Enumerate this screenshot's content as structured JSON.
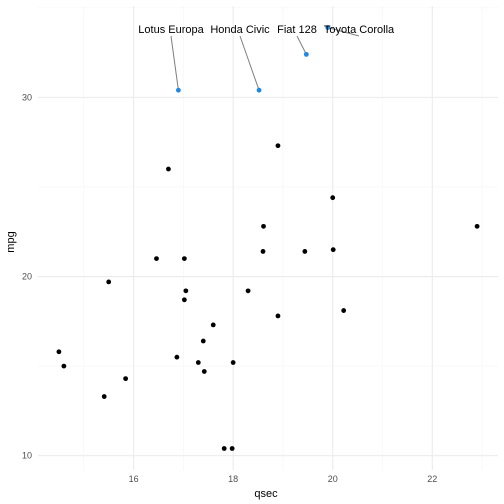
{
  "chart_data": {
    "type": "scatter",
    "title": "",
    "xlabel": "qsec",
    "ylabel": "mpg",
    "xlim": [
      14.08,
      23.32
    ],
    "ylim": [
      9.2,
      35.1
    ],
    "xticks": [
      16,
      18,
      20,
      22
    ],
    "yticks": [
      10,
      20,
      30
    ],
    "grid": true,
    "legend": "none",
    "colors": {
      "point": "#000000",
      "highlight": "#1e88e5",
      "leader": "#7f7f7f",
      "grid_major": "#ebebeb",
      "grid_minor": "#f5f5f5"
    },
    "points": [
      {
        "x": 16.46,
        "y": 21.0
      },
      {
        "x": 17.02,
        "y": 21.0
      },
      {
        "x": 18.61,
        "y": 22.8
      },
      {
        "x": 19.44,
        "y": 21.4
      },
      {
        "x": 17.02,
        "y": 18.7
      },
      {
        "x": 20.22,
        "y": 18.1
      },
      {
        "x": 15.84,
        "y": 14.3
      },
      {
        "x": 20.0,
        "y": 24.4
      },
      {
        "x": 22.9,
        "y": 22.8
      },
      {
        "x": 18.3,
        "y": 19.2
      },
      {
        "x": 18.9,
        "y": 17.8
      },
      {
        "x": 17.4,
        "y": 16.4
      },
      {
        "x": 17.6,
        "y": 17.3
      },
      {
        "x": 18.0,
        "y": 15.2
      },
      {
        "x": 17.98,
        "y": 10.4
      },
      {
        "x": 17.82,
        "y": 10.4
      },
      {
        "x": 17.42,
        "y": 14.7
      },
      {
        "x": 20.01,
        "y": 21.5
      },
      {
        "x": 16.87,
        "y": 15.5
      },
      {
        "x": 17.3,
        "y": 15.2
      },
      {
        "x": 15.41,
        "y": 13.3
      },
      {
        "x": 17.05,
        "y": 19.2
      },
      {
        "x": 18.9,
        "y": 27.3
      },
      {
        "x": 16.7,
        "y": 26.0
      },
      {
        "x": 14.5,
        "y": 15.8
      },
      {
        "x": 15.5,
        "y": 19.7
      },
      {
        "x": 14.6,
        "y": 15.0
      },
      {
        "x": 18.6,
        "y": 21.4
      }
    ],
    "highlighted": [
      {
        "label": "Lotus Europa",
        "x": 16.9,
        "y": 30.4
      },
      {
        "label": "Honda Civic",
        "x": 18.52,
        "y": 30.4
      },
      {
        "label": "Fiat 128",
        "x": 19.47,
        "y": 32.4
      },
      {
        "label": "Toyota Corolla",
        "x": 19.9,
        "y": 33.9
      }
    ]
  }
}
